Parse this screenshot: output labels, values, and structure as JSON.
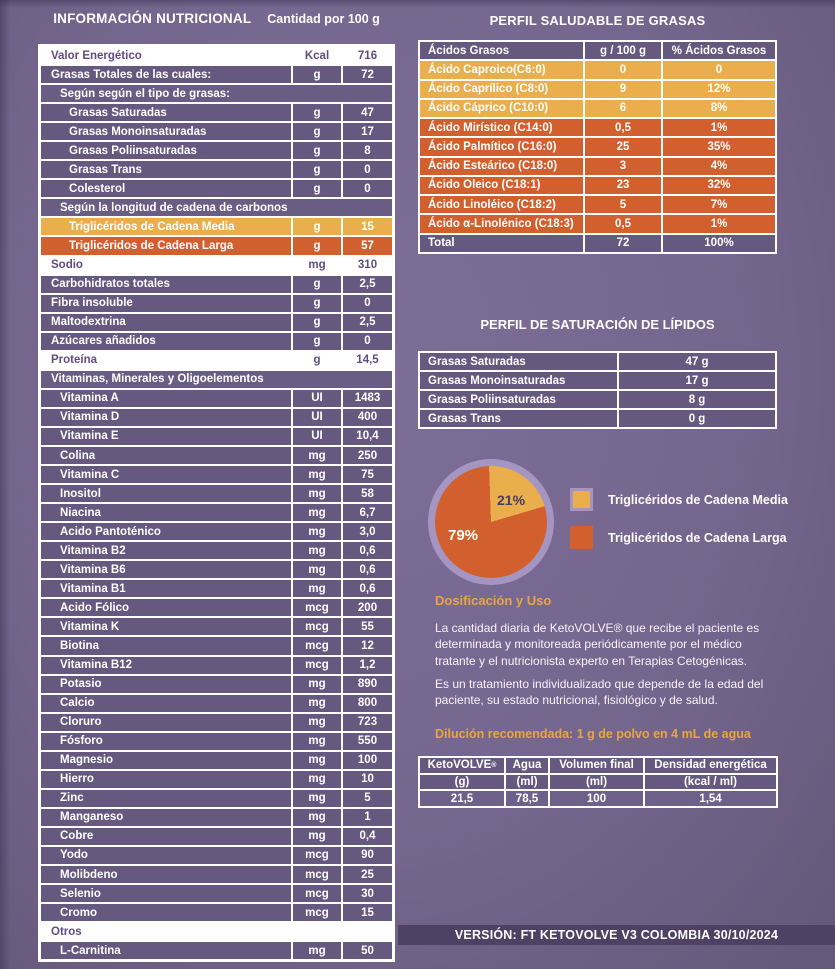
{
  "nutrition": {
    "title": "INFORMACIÓN NUTRICIONAL",
    "subtitle": "Cantidad por 100 g",
    "rows": [
      {
        "label": "Valor Energético",
        "unit": "Kcal",
        "value": "716",
        "style": "white",
        "indent": 0
      },
      {
        "label": "Grasas Totales de las cuales:",
        "unit": "g",
        "value": "72",
        "style": "purple",
        "indent": 0
      },
      {
        "label": "Según según el tipo de grasas:",
        "style": "section",
        "indent": 1
      },
      {
        "label": "Grasas Saturadas",
        "unit": "g",
        "value": "47",
        "style": "purple",
        "indent": 2
      },
      {
        "label": "Grasas Monoinsaturadas",
        "unit": "g",
        "value": "17",
        "style": "purple",
        "indent": 2
      },
      {
        "label": "Grasas Poliinsaturadas",
        "unit": "g",
        "value": "8",
        "style": "purple",
        "indent": 2
      },
      {
        "label": "Grasas Trans",
        "unit": "g",
        "value": "0",
        "style": "purple",
        "indent": 2
      },
      {
        "label": "Colesterol",
        "unit": "g",
        "value": "0",
        "style": "purple",
        "indent": 2
      },
      {
        "label": "Según la longitud de cadena de carbonos",
        "style": "section",
        "indent": 1
      },
      {
        "label": "Triglicéridos de Cadena Media",
        "unit": "g",
        "value": "15",
        "style": "yellow",
        "indent": 2
      },
      {
        "label": "Triglicéridos de Cadena Larga",
        "unit": "g",
        "value": "57",
        "style": "orange",
        "indent": 2
      },
      {
        "label": "Sodio",
        "unit": "mg",
        "value": "310",
        "style": "white",
        "indent": 0
      },
      {
        "label": "Carbohidratos totales",
        "unit": "g",
        "value": "2,5",
        "style": "purple",
        "indent": 0
      },
      {
        "label": "Fibra insoluble",
        "unit": "g",
        "value": "0",
        "style": "purple",
        "indent": 0
      },
      {
        "label": "Maltodextrina",
        "unit": "g",
        "value": "2,5",
        "style": "purple",
        "indent": 0
      },
      {
        "label": "Azúcares añadidos",
        "unit": "g",
        "value": "0",
        "style": "purple",
        "indent": 0
      },
      {
        "label": "Proteína",
        "unit": "g",
        "value": "14,5",
        "style": "white",
        "indent": 0
      },
      {
        "label": "Vitaminas, Minerales y Oligoelementos",
        "style": "section",
        "indent": 0
      },
      {
        "label": "Vitamina A",
        "unit": "UI",
        "value": "1483",
        "style": "purple",
        "indent": 1
      },
      {
        "label": "Vitamina D",
        "unit": "UI",
        "value": "400",
        "style": "purple",
        "indent": 1
      },
      {
        "label": "Vitamina E",
        "unit": "UI",
        "value": "10,4",
        "style": "purple",
        "indent": 1
      },
      {
        "label": "Colina",
        "unit": "mg",
        "value": "250",
        "style": "purple",
        "indent": 1
      },
      {
        "label": "Vitamina C",
        "unit": "mg",
        "value": "75",
        "style": "purple",
        "indent": 1
      },
      {
        "label": "Inositol",
        "unit": "mg",
        "value": "58",
        "style": "purple",
        "indent": 1
      },
      {
        "label": "Niacina",
        "unit": "mg",
        "value": "6,7",
        "style": "purple",
        "indent": 1
      },
      {
        "label": "Ácido Pantoténico",
        "unit": "mg",
        "value": "3,0",
        "style": "purple",
        "indent": 1
      },
      {
        "label": "Vitamina B2",
        "unit": "mg",
        "value": "0,6",
        "style": "purple",
        "indent": 1
      },
      {
        "label": "Vitamina B6",
        "unit": "mg",
        "value": "0,6",
        "style": "purple",
        "indent": 1
      },
      {
        "label": "Vitamina B1",
        "unit": "mg",
        "value": "0,6",
        "style": "purple",
        "indent": 1
      },
      {
        "label": "Ácido Fólico",
        "unit": "mcg",
        "value": "200",
        "style": "purple",
        "indent": 1
      },
      {
        "label": "Vitamina K",
        "unit": "mcg",
        "value": "55",
        "style": "purple",
        "indent": 1
      },
      {
        "label": "Biotina",
        "unit": "mcg",
        "value": "12",
        "style": "purple",
        "indent": 1
      },
      {
        "label": "Vitamina B12",
        "unit": "mcg",
        "value": "1,2",
        "style": "purple",
        "indent": 1
      },
      {
        "label": "Potasio",
        "unit": "mg",
        "value": "890",
        "style": "purple",
        "indent": 1
      },
      {
        "label": "Calcio",
        "unit": "mg",
        "value": "800",
        "style": "purple",
        "indent": 1
      },
      {
        "label": "Cloruro",
        "unit": "mg",
        "value": "723",
        "style": "purple",
        "indent": 1
      },
      {
        "label": "Fósforo",
        "unit": "mg",
        "value": "550",
        "style": "purple",
        "indent": 1
      },
      {
        "label": "Magnesio",
        "unit": "mg",
        "value": "100",
        "style": "purple",
        "indent": 1
      },
      {
        "label": "Hierro",
        "unit": "mg",
        "value": "10",
        "style": "purple",
        "indent": 1
      },
      {
        "label": "Zinc",
        "unit": "mg",
        "value": "5",
        "style": "purple",
        "indent": 1
      },
      {
        "label": "Manganeso",
        "unit": "mg",
        "value": "1",
        "style": "purple",
        "indent": 1
      },
      {
        "label": "Cobre",
        "unit": "mg",
        "value": "0,4",
        "style": "purple",
        "indent": 1
      },
      {
        "label": "Yodo",
        "unit": "mcg",
        "value": "90",
        "style": "purple",
        "indent": 1
      },
      {
        "label": "Molibdeno",
        "unit": "mcg",
        "value": "25",
        "style": "purple",
        "indent": 1
      },
      {
        "label": "Selenio",
        "unit": "mcg",
        "value": "30",
        "style": "purple",
        "indent": 1
      },
      {
        "label": "Cromo",
        "unit": "mcg",
        "value": "15",
        "style": "purple",
        "indent": 1
      },
      {
        "label": "Otros",
        "style": "white-section",
        "indent": 0
      },
      {
        "label": "L-Carnitina",
        "unit": "mg",
        "value": "50",
        "style": "purple",
        "indent": 1
      }
    ]
  },
  "fat_profile": {
    "title": "PERFIL SALUDABLE DE GRASAS",
    "headers": [
      "Ácidos Grasos",
      "g / 100 g",
      "% Ácidos Grasos"
    ],
    "rows": [
      {
        "label": "Ácido Caproico(C6:0)",
        "g": "0",
        "pct": "0",
        "style": "yellow"
      },
      {
        "label": "Ácido Caprílico (C8:0)",
        "g": "9",
        "pct": "12%",
        "style": "yellow"
      },
      {
        "label": "Ácido Cáprico (C10:0)",
        "g": "6",
        "pct": "8%",
        "style": "yellow"
      },
      {
        "label": "Ácido Mirístico (C14:0)",
        "g": "0,5",
        "pct": "1%",
        "style": "orange"
      },
      {
        "label": "Ácido Palmítico (C16:0)",
        "g": "25",
        "pct": "35%",
        "style": "orange"
      },
      {
        "label": "Ácido Esteárico (C18:0)",
        "g": "3",
        "pct": "4%",
        "style": "orange"
      },
      {
        "label": "Ácido Oleico (C18:1)",
        "g": "23",
        "pct": "32%",
        "style": "orange"
      },
      {
        "label": "Ácido Linoléico (C18:2)",
        "g": "5",
        "pct": "7%",
        "style": "orange"
      },
      {
        "label": "Ácido α-Linolénico (C18:3)",
        "g": "0,5",
        "pct": "1%",
        "style": "orange"
      }
    ],
    "total": {
      "label": "Total",
      "g": "72",
      "pct": "100%"
    }
  },
  "saturation": {
    "title": "PERFIL DE SATURACIÓN DE LÍPIDOS",
    "rows": [
      {
        "label": "Grasas Saturadas",
        "value": "47 g"
      },
      {
        "label": "Grasas Monoinsaturadas",
        "value": "17 g"
      },
      {
        "label": "Grasas Poliinsaturadas",
        "value": "8 g"
      },
      {
        "label": "Grasas Trans",
        "value": "0 g"
      }
    ]
  },
  "chart_data": {
    "type": "pie",
    "labels": [
      "Triglicéridos de Cadena Media",
      "Triglicéridos de Cadena Larga"
    ],
    "values": [
      21,
      79
    ],
    "unit": "%",
    "colors": [
      "#eaae4d",
      "#d2602e"
    ],
    "legend_position": "right"
  },
  "dosage": {
    "heading": "Dosificación y Uso",
    "p1": "La cantidad diaria de KetoVOLVE® que recibe el paciente es determinada y monitoreada periódicamente por el médico tratante y el nutricionista experto en Terapias Cetogénicas.",
    "p2": "Es un tratamiento individualizado que depende de la edad del paciente, su estado nutricional, fisiológico y de salud.",
    "dilution_heading": "Dilución recomendada: 1 g de polvo en 4 mL de agua"
  },
  "dilution_table": {
    "headers": [
      "KetoVOLVE",
      "Agua",
      "Volumen final",
      "Densidad energética"
    ],
    "header_mark": "®",
    "units": [
      "(g)",
      "(ml)",
      "(ml)",
      "(kcal / ml)"
    ],
    "values": [
      "21,5",
      "78,5",
      "100",
      "1,54"
    ]
  },
  "footer": {
    "text": "VERSIÓN: FT KETOVOLVE V3 COLOMBIA 30/10/2024"
  },
  "colors": {
    "background": "#75668e",
    "row_purple": "#66597f",
    "row_yellow": "#eaae4d",
    "row_orange": "#d2602e",
    "accent_heading": "#e9a63e",
    "pie_ring": "#a495c2",
    "footer_band": "#4d4263",
    "white_row_text": "#5d4e82"
  }
}
